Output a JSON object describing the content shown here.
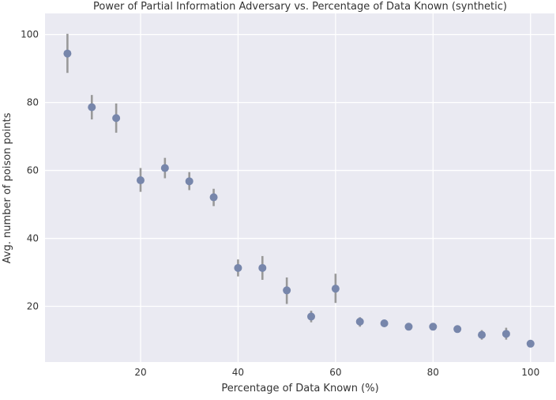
{
  "chart_data": {
    "type": "scatter",
    "title": "Power of Partial Information Adversary vs. Percentage of Data Known (synthetic)",
    "xlabel": "Percentage of Data Known (%)",
    "ylabel": "Avg. number of poison points",
    "xlim": [
      0.4,
      104.9
    ],
    "ylim": [
      3.6,
      106.2
    ],
    "xticks": [
      20,
      40,
      60,
      80,
      100
    ],
    "yticks": [
      20,
      40,
      60,
      80,
      100
    ],
    "grid": true,
    "background": "#EAEAF2",
    "point_color": "#7786AB",
    "errorbar_color": "#999999",
    "points": [
      {
        "x": 5,
        "y": 94.4,
        "lo": 88.7,
        "hi": 100.2
      },
      {
        "x": 10,
        "y": 78.6,
        "lo": 75.0,
        "hi": 82.2
      },
      {
        "x": 15,
        "y": 75.4,
        "lo": 71.1,
        "hi": 79.7
      },
      {
        "x": 20,
        "y": 57.1,
        "lo": 53.7,
        "hi": 60.7
      },
      {
        "x": 25,
        "y": 60.7,
        "lo": 57.7,
        "hi": 63.7
      },
      {
        "x": 30,
        "y": 56.8,
        "lo": 54.2,
        "hi": 59.5
      },
      {
        "x": 35,
        "y": 52.1,
        "lo": 49.5,
        "hi": 54.6
      },
      {
        "x": 40,
        "y": 31.3,
        "lo": 28.8,
        "hi": 33.8
      },
      {
        "x": 45,
        "y": 31.3,
        "lo": 27.8,
        "hi": 34.8
      },
      {
        "x": 50,
        "y": 24.7,
        "lo": 20.7,
        "hi": 28.5
      },
      {
        "x": 55,
        "y": 17.0,
        "lo": 15.3,
        "hi": 18.7
      },
      {
        "x": 60,
        "y": 25.2,
        "lo": 21.0,
        "hi": 29.6
      },
      {
        "x": 65,
        "y": 15.5,
        "lo": 14.0,
        "hi": 16.8
      },
      {
        "x": 70,
        "y": 15.0,
        "lo": 14.7,
        "hi": 15.3
      },
      {
        "x": 75,
        "y": 14.0,
        "lo": 13.8,
        "hi": 14.2
      },
      {
        "x": 80,
        "y": 14.0,
        "lo": 13.8,
        "hi": 14.2
      },
      {
        "x": 85,
        "y": 13.3,
        "lo": 13.1,
        "hi": 13.5
      },
      {
        "x": 90,
        "y": 11.6,
        "lo": 10.2,
        "hi": 13.0
      },
      {
        "x": 95,
        "y": 11.9,
        "lo": 10.2,
        "hi": 13.7
      },
      {
        "x": 100,
        "y": 9.0,
        "lo": 8.8,
        "hi": 9.2
      }
    ]
  }
}
